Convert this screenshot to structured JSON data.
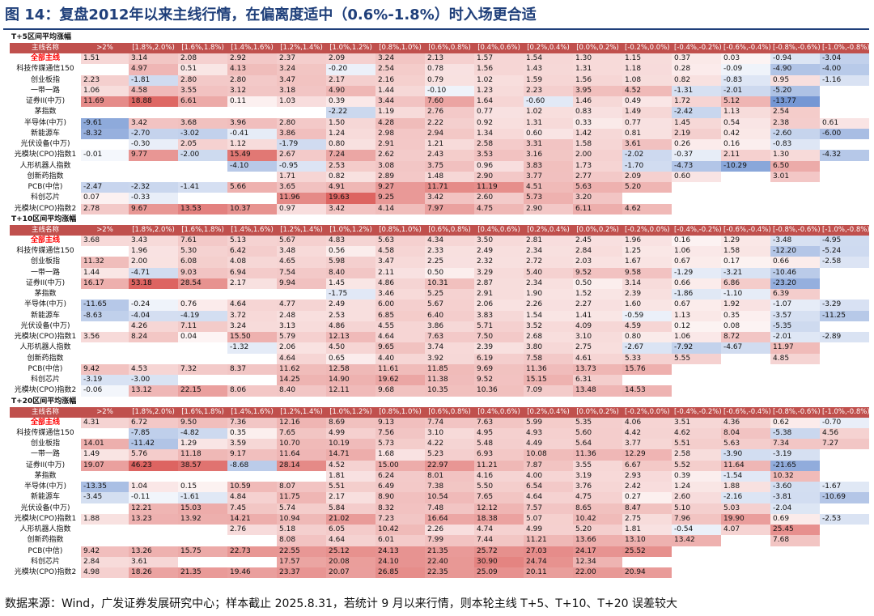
{
  "title": "图 14：复盘2012年以来主线行情，在偏离度适中（0.6%-1.8%）时入场更合适",
  "source": "数据来源：Wind，广发证券发展研究中心；样本截止 2025.8.31，若统计 9 月以来行情，则本轮主线 T+5、T+10、T+20 误差较大",
  "colors": {
    "header_bg": "#c0504d",
    "positive": "#d9534f",
    "negative": "#4472c4",
    "main_row_text": "#ff0000",
    "title": "#1f3f7a"
  },
  "header": [
    "主线名称",
    ">2%",
    "[1.8%,2.0%)",
    "[1.6%,1.8%)",
    "[1.4%,1.6%)",
    "[1.2%,1.4%)",
    "[1.0%,1.2%)",
    "[0.8%,1.0%)",
    "[0.6%,0.8%)",
    "[0.4%,0.6%)",
    "[0.2%,0.4%)",
    "[0.0%,0.2%)",
    "[-0.2%,0.0%)",
    "[-0.4%,-0.2%)",
    "[-0.6%,-0.4%)",
    "[-0.8%,-0.6%)",
    "[-1.0%,-0.8%)"
  ],
  "sections": [
    {
      "title": "T+5区间平均涨幅",
      "rows": [
        {
          "name": "全部主线",
          "highlight": true,
          "values": [
            "1.51",
            "3.14",
            "2.08",
            "2.92",
            "2.37",
            "2.09",
            "3.24",
            "2.13",
            "1.57",
            "1.54",
            "1.30",
            "1.15",
            "0.37",
            "0.03",
            "-0.94",
            "-3.04"
          ]
        },
        {
          "name": "科技传媒通信150",
          "values": [
            "",
            "4.97",
            "0.51",
            "4.13",
            "3.24",
            "-0.20",
            "2.54",
            "0.78",
            "1.56",
            "1.43",
            "1.31",
            "1.18",
            "0.28",
            "-0.09",
            "-4.90",
            "-4.00"
          ]
        },
        {
          "name": "创业板指",
          "values": [
            "2.23",
            "-1.81",
            "2.80",
            "2.80",
            "3.47",
            "2.17",
            "2.16",
            "0.79",
            "1.02",
            "1.59",
            "1.56",
            "1.08",
            "0.82",
            "-0.83",
            "0.95",
            "-1.16"
          ]
        },
        {
          "name": "一带一路",
          "values": [
            "1.06",
            "4.58",
            "3.55",
            "3.12",
            "3.18",
            "4.90",
            "1.44",
            "-0.10",
            "1.23",
            "2.23",
            "3.95",
            "4.52",
            "-1.31",
            "-2.01",
            "-5.20",
            ""
          ]
        },
        {
          "name": "证券II(中万)",
          "values": [
            "11.69",
            "18.88",
            "6.61",
            "0.11",
            "1.03",
            "0.39",
            "3.44",
            "7.60",
            "1.64",
            "-0.60",
            "1.46",
            "0.49",
            "1.72",
            "5.12",
            "-13.77",
            ""
          ]
        },
        {
          "name": "茅指数",
          "values": [
            "",
            "",
            "",
            "",
            "",
            "-2.22",
            "1.19",
            "2.76",
            "0.77",
            "1.02",
            "0.83",
            "1.49",
            "-2.42",
            "1.13",
            "2.54",
            ""
          ]
        },
        {
          "name": "半导体(中万)",
          "values": [
            "-9.61",
            "3.42",
            "3.68",
            "3.96",
            "2.80",
            "1.50",
            "4.28",
            "2.22",
            "0.92",
            "1.31",
            "0.33",
            "0.77",
            "1.45",
            "0.54",
            "2.38",
            "0.61"
          ]
        },
        {
          "name": "新能源车",
          "values": [
            "-8.32",
            "-2.70",
            "-3.02",
            "-0.41",
            "3.86",
            "1.24",
            "2.98",
            "2.94",
            "1.34",
            "0.60",
            "1.42",
            "0.81",
            "2.19",
            "0.42",
            "-2.60",
            "-6.00"
          ]
        },
        {
          "name": "光伏设备(中万)",
          "values": [
            "",
            "-0.30",
            "2.05",
            "1.12",
            "-1.79",
            "0.80",
            "2.91",
            "1.21",
            "2.58",
            "3.31",
            "1.58",
            "3.61",
            "0.26",
            "0.16",
            "-0.83",
            ""
          ]
        },
        {
          "name": "光模块(CPO)指数1",
          "values": [
            "-0.01",
            "9.77",
            "-2.00",
            "15.49",
            "2.67",
            "7.24",
            "2.62",
            "2.43",
            "3.53",
            "3.16",
            "2.00",
            "-2.02",
            "-0.37",
            "2.11",
            "1.30",
            "-4.32"
          ]
        },
        {
          "name": "人形机器人指数",
          "values": [
            "",
            "",
            "",
            "-4.10",
            "-0.95",
            "2.53",
            "3.08",
            "3.75",
            "0.96",
            "3.83",
            "1.73",
            "-1.70",
            "-4.73",
            "-10.29",
            "6.50",
            ""
          ]
        },
        {
          "name": "创新药指数",
          "values": [
            "",
            "",
            "",
            "",
            "1.71",
            "0.82",
            "2.89",
            "1.48",
            "2.90",
            "3.77",
            "2.77",
            "2.09",
            "0.60",
            "",
            "3.01",
            ""
          ]
        },
        {
          "name": "PCB(中信)",
          "values": [
            "-2.47",
            "-2.32",
            "-1.41",
            "5.66",
            "3.65",
            "4.91",
            "9.27",
            "11.71",
            "11.19",
            "4.51",
            "5.63",
            "5.20",
            "",
            "",
            "",
            ""
          ]
        },
        {
          "name": "科创芯片",
          "values": [
            "0.07",
            "-0.33",
            "",
            "",
            "11.96",
            "19.63",
            "9.25",
            "3.42",
            "2.60",
            "5.73",
            "3.20",
            "",
            "",
            "",
            "",
            ""
          ]
        },
        {
          "name": "光模块(CPO)指数2",
          "values": [
            "2.78",
            "9.67",
            "13.53",
            "10.37",
            "0.97",
            "3.42",
            "4.14",
            "7.97",
            "4.75",
            "2.90",
            "6.11",
            "4.62",
            "",
            "",
            "",
            ""
          ]
        }
      ]
    },
    {
      "title": "T+10区间平均涨幅",
      "rows": [
        {
          "name": "全部主线",
          "highlight": true,
          "values": [
            "3.68",
            "3.43",
            "7.61",
            "5.13",
            "5.67",
            "4.83",
            "5.63",
            "4.34",
            "3.50",
            "2.81",
            "2.45",
            "1.96",
            "0.16",
            "1.29",
            "-3.48",
            "-4.95"
          ]
        },
        {
          "name": "科技传媒通信150",
          "values": [
            "",
            "1.96",
            "5.30",
            "6.42",
            "3.48",
            "0.56",
            "4.58",
            "2.33",
            "2.49",
            "2.34",
            "2.84",
            "1.25",
            "1.06",
            "1.58",
            "-12.20",
            "-5.24"
          ]
        },
        {
          "name": "创业板指",
          "values": [
            "11.32",
            "2.00",
            "6.08",
            "4.08",
            "4.65",
            "5.98",
            "3.47",
            "2.25",
            "2.32",
            "2.72",
            "2.03",
            "1.67",
            "0.67",
            "0.17",
            "0.66",
            "-2.58"
          ]
        },
        {
          "name": "一带一路",
          "values": [
            "1.44",
            "-4.71",
            "9.03",
            "6.94",
            "7.54",
            "8.40",
            "2.11",
            "0.50",
            "3.29",
            "5.40",
            "9.52",
            "9.58",
            "-1.29",
            "-3.21",
            "-10.46",
            ""
          ]
        },
        {
          "name": "证券II(中万)",
          "values": [
            "16.17",
            "53.18",
            "28.54",
            "2.17",
            "9.94",
            "1.45",
            "4.86",
            "10.31",
            "2.87",
            "2.34",
            "0.50",
            "3.14",
            "0.66",
            "6.86",
            "-23.20",
            ""
          ]
        },
        {
          "name": "茅指数",
          "values": [
            "",
            "",
            "",
            "",
            "",
            "-1.75",
            "3.46",
            "5.25",
            "2.91",
            "1.90",
            "1.52",
            "2.39",
            "-1.86",
            "-1.10",
            "6.39",
            ""
          ]
        },
        {
          "name": "半导体(中万)",
          "values": [
            "-11.65",
            "-0.24",
            "0.76",
            "4.64",
            "4.77",
            "2.49",
            "6.00",
            "5.67",
            "2.06",
            "2.26",
            "2.27",
            "1.60",
            "0.67",
            "1.92",
            "-1.07",
            "-3.29"
          ]
        },
        {
          "name": "新能源车",
          "values": [
            "-8.63",
            "-4.04",
            "-4.19",
            "3.72",
            "2.48",
            "2.53",
            "6.85",
            "6.40",
            "3.83",
            "1.54",
            "1.41",
            "-0.59",
            "1.13",
            "0.35",
            "-3.57",
            "-11.25"
          ]
        },
        {
          "name": "光伏设备(中万)",
          "values": [
            "",
            "4.26",
            "7.11",
            "3.24",
            "3.13",
            "4.86",
            "4.55",
            "3.86",
            "5.71",
            "3.52",
            "4.09",
            "4.59",
            "0.12",
            "0.08",
            "-5.35",
            ""
          ]
        },
        {
          "name": "光模块(CPO)指数1",
          "values": [
            "3.56",
            "8.24",
            "0.04",
            "15.50",
            "5.79",
            "12.13",
            "4.64",
            "7.63",
            "7.50",
            "2.68",
            "3.10",
            "0.80",
            "1.06",
            "8.72",
            "-2.01",
            "-2.89"
          ]
        },
        {
          "name": "人形机器人指数",
          "values": [
            "",
            "",
            "",
            "-1.32",
            "2.06",
            "4.50",
            "9.65",
            "3.74",
            "2.39",
            "3.80",
            "2.75",
            "-2.67",
            "-7.92",
            "-4.67",
            "11.97",
            ""
          ]
        },
        {
          "name": "创新药指数",
          "values": [
            "",
            "",
            "",
            "",
            "4.64",
            "0.65",
            "4.40",
            "3.92",
            "6.19",
            "7.58",
            "4.61",
            "5.33",
            "5.55",
            "",
            "4.85",
            ""
          ]
        },
        {
          "name": "PCB(中信)",
          "values": [
            "9.42",
            "4.53",
            "7.32",
            "8.37",
            "11.62",
            "12.58",
            "11.61",
            "11.85",
            "9.69",
            "11.36",
            "13.73",
            "15.76",
            "",
            "",
            "",
            ""
          ]
        },
        {
          "name": "科创芯片",
          "values": [
            "-3.19",
            "-3.00",
            "",
            "",
            "14.25",
            "14.90",
            "19.62",
            "11.38",
            "9.52",
            "15.15",
            "6.31",
            "",
            "",
            "",
            "",
            ""
          ]
        },
        {
          "name": "光模块(CPO)指数2",
          "values": [
            "-0.06",
            "13.12",
            "22.15",
            "8.06",
            "8.40",
            "12.11",
            "9.68",
            "10.35",
            "10.36",
            "7.09",
            "13.48",
            "14.53",
            "",
            "",
            "",
            ""
          ]
        }
      ]
    },
    {
      "title": "T+20区间平均涨幅",
      "rows": [
        {
          "name": "全部主线",
          "highlight": true,
          "values": [
            "4.31",
            "6.72",
            "9.50",
            "7.36",
            "12.16",
            "8.69",
            "9.13",
            "7.74",
            "7.63",
            "5.99",
            "5.35",
            "4.06",
            "3.51",
            "4.36",
            "0.62",
            "-0.70"
          ]
        },
        {
          "name": "科技传媒通信150",
          "values": [
            "",
            "-7.85",
            "-4.82",
            "0.35",
            "7.65",
            "4.99",
            "7.56",
            "3.10",
            "4.95",
            "4.93",
            "5.60",
            "4.42",
            "4.62",
            "8.04",
            "-5.38",
            "4.56"
          ]
        },
        {
          "name": "创业板指",
          "values": [
            "14.01",
            "-11.42",
            "1.29",
            "3.59",
            "10.70",
            "10.19",
            "5.73",
            "4.22",
            "5.48",
            "4.49",
            "5.64",
            "3.77",
            "5.51",
            "5.63",
            "7.34",
            "7.27"
          ]
        },
        {
          "name": "一带一路",
          "values": [
            "1.49",
            "5.76",
            "11.18",
            "9.17",
            "11.64",
            "14.71",
            "1.68",
            "5.23",
            "6.93",
            "10.08",
            "11.36",
            "12.29",
            "2.58",
            "-3.90",
            "-3.19",
            ""
          ]
        },
        {
          "name": "证券II(中万)",
          "values": [
            "19.07",
            "46.23",
            "38.57",
            "-8.68",
            "28.14",
            "4.52",
            "15.00",
            "22.97",
            "11.21",
            "7.87",
            "3.55",
            "6.67",
            "5.52",
            "11.64",
            "-21.65",
            ""
          ]
        },
        {
          "name": "茅指数",
          "values": [
            "",
            "",
            "",
            "",
            "",
            "1.81",
            "6.24",
            "8.01",
            "4.16",
            "4.00",
            "3.19",
            "2.93",
            "0.39",
            "-1.54",
            "10.32",
            ""
          ]
        },
        {
          "name": "半导体(中万)",
          "values": [
            "-13.35",
            "1.04",
            "0.15",
            "10.59",
            "8.07",
            "5.51",
            "6.49",
            "7.38",
            "5.50",
            "6.54",
            "3.76",
            "2.42",
            "1.24",
            "1.88",
            "-3.60",
            "-1.67"
          ]
        },
        {
          "name": "新能源车",
          "values": [
            "-3.45",
            "-0.11",
            "-1.61",
            "4.84",
            "11.75",
            "2.17",
            "8.90",
            "10.54",
            "7.65",
            "4.64",
            "4.75",
            "0.27",
            "2.60",
            "-2.16",
            "-3.81",
            "-10.69"
          ]
        },
        {
          "name": "光伏设备(中万)",
          "values": [
            "",
            "12.21",
            "15.03",
            "7.45",
            "5.74",
            "5.84",
            "8.32",
            "7.48",
            "12.12",
            "7.57",
            "8.65",
            "8.47",
            "5.10",
            "5.03",
            "-2.04",
            ""
          ]
        },
        {
          "name": "光模块(CPO)指数1",
          "values": [
            "1.88",
            "13.23",
            "13.92",
            "14.21",
            "10.94",
            "21.02",
            "7.23",
            "16.64",
            "18.38",
            "5.07",
            "10.42",
            "2.75",
            "7.96",
            "19.90",
            "0.69",
            "-2.53"
          ]
        },
        {
          "name": "人形机器人指数",
          "values": [
            "",
            "",
            "",
            "2.76",
            "5.18",
            "6.05",
            "10.42",
            "2.26",
            "4.74",
            "4.99",
            "5.20",
            "1.81",
            "-0.54",
            "4.07",
            "25.45",
            ""
          ]
        },
        {
          "name": "创新药指数",
          "values": [
            "",
            "",
            "",
            "",
            "8.08",
            "4.64",
            "6.01",
            "7.99",
            "7.44",
            "11.21",
            "13.66",
            "13.10",
            "13.42",
            "",
            "7.68",
            ""
          ]
        },
        {
          "name": "PCB(中信)",
          "values": [
            "9.42",
            "13.26",
            "15.75",
            "22.73",
            "22.55",
            "25.12",
            "24.13",
            "21.35",
            "25.72",
            "27.03",
            "24.17",
            "25.52",
            "",
            "",
            "",
            ""
          ]
        },
        {
          "name": "科创芯片",
          "values": [
            "2.84",
            "3.61",
            "",
            "",
            "17.57",
            "20.08",
            "24.10",
            "22.40",
            "30.90",
            "24.74",
            "12.34",
            "",
            "",
            "",
            "",
            ""
          ]
        },
        {
          "name": "光模块(CPO)指数2",
          "values": [
            "4.98",
            "18.26",
            "21.35",
            "19.46",
            "23.37",
            "20.07",
            "26.85",
            "22.35",
            "25.09",
            "20.11",
            "22.00",
            "20.94",
            "",
            "",
            "",
            ""
          ]
        }
      ]
    }
  ]
}
